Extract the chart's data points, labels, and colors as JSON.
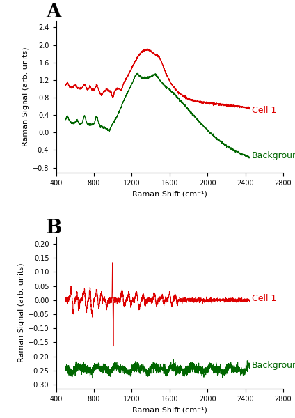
{
  "panel_A_label": "A",
  "panel_B_label": "B",
  "xlabel": "Raman Shift (cm⁻¹)",
  "ylabel": "Raman Signal (arb. units)",
  "cell1_label": "Cell 1",
  "background_label": "Background",
  "cell1_color": "#dd0000",
  "background_color": "#006600",
  "panel_A_xlim": [
    400,
    2800
  ],
  "panel_A_ylim": [
    -0.92,
    2.55
  ],
  "panel_A_yticks": [
    -0.8,
    -0.4,
    0.0,
    0.4,
    0.8,
    1.2,
    1.6,
    2.0,
    2.4
  ],
  "panel_A_xticks": [
    400,
    800,
    1200,
    1600,
    2000,
    2400,
    2800
  ],
  "panel_B_xlim": [
    400,
    2800
  ],
  "panel_B_ylim": [
    -0.315,
    0.225
  ],
  "panel_B_yticks": [
    -0.3,
    -0.25,
    -0.2,
    -0.15,
    -0.1,
    -0.05,
    0.0,
    0.05,
    0.1,
    0.15,
    0.2
  ],
  "panel_B_xticks": [
    400,
    800,
    1200,
    1600,
    2000,
    2400,
    2800
  ],
  "figure_bg": "#ffffff",
  "label_fontsize": 9,
  "axis_fontsize": 8,
  "tick_fontsize": 7,
  "panel_letter_fontsize": 20
}
